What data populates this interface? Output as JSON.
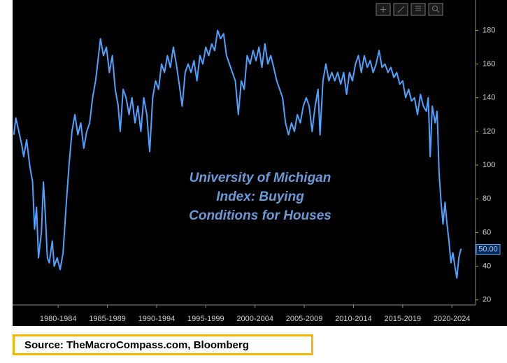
{
  "chart_data": {
    "type": "line",
    "annotation": [
      "University of Michigan",
      "Index: Buying",
      "Conditions for Houses"
    ],
    "source": "Source: TheMacroCompass.com, Bloomberg",
    "last_label": {
      "value": 50,
      "label": "50.00"
    },
    "xlim": [
      1977.87,
      2024.9
    ],
    "xticks": [
      {
        "value": 1982.5,
        "label": "1980-1984"
      },
      {
        "value": 1987.5,
        "label": "1985-1989"
      },
      {
        "value": 1992.5,
        "label": "1990-1994"
      },
      {
        "value": 1997.5,
        "label": "1995-1999"
      },
      {
        "value": 2002.5,
        "label": "2000-2004"
      },
      {
        "value": 2007.5,
        "label": "2005-2009"
      },
      {
        "value": 2012.5,
        "label": "2010-2014"
      },
      {
        "value": 2017.5,
        "label": "2015-2019"
      },
      {
        "value": 2022.5,
        "label": "2020-2024"
      }
    ],
    "ylim": [
      17,
      198
    ],
    "yticks": [
      20,
      40,
      60,
      80,
      100,
      120,
      140,
      160,
      180
    ],
    "grid": false,
    "series": [
      {
        "color": "#4da3ff",
        "x": [
          1978.0,
          1978.2,
          1978.5,
          1978.8,
          1979.0,
          1979.3,
          1979.6,
          1979.9,
          1980.1,
          1980.3,
          1980.5,
          1980.8,
          1981.0,
          1981.2,
          1981.4,
          1981.6,
          1981.9,
          1982.1,
          1982.4,
          1982.7,
          1983.0,
          1983.3,
          1983.6,
          1983.9,
          1984.2,
          1984.5,
          1984.8,
          1985.1,
          1985.4,
          1985.7,
          1986.0,
          1986.3,
          1986.6,
          1986.8,
          1987.1,
          1987.4,
          1987.7,
          1988.0,
          1988.3,
          1988.6,
          1988.8,
          1989.1,
          1989.4,
          1989.7,
          1990.0,
          1990.3,
          1990.6,
          1990.9,
          1991.2,
          1991.5,
          1991.8,
          1992.1,
          1992.4,
          1992.7,
          1993.0,
          1993.3,
          1993.6,
          1993.9,
          1994.2,
          1994.5,
          1994.8,
          1995.1,
          1995.4,
          1995.7,
          1996.0,
          1996.3,
          1996.6,
          1996.9,
          1997.2,
          1997.5,
          1997.8,
          1998.1,
          1998.4,
          1998.7,
          1999.0,
          1999.3,
          1999.6,
          1999.9,
          2000.2,
          2000.5,
          2000.8,
          2001.1,
          2001.4,
          2001.7,
          2002.0,
          2002.3,
          2002.6,
          2002.9,
          2003.2,
          2003.5,
          2003.8,
          2004.1,
          2004.4,
          2004.7,
          2005.0,
          2005.3,
          2005.6,
          2005.9,
          2006.2,
          2006.5,
          2006.8,
          2007.1,
          2007.4,
          2007.7,
          2008.0,
          2008.3,
          2008.6,
          2008.9,
          2009.1,
          2009.4,
          2009.7,
          2010.0,
          2010.3,
          2010.6,
          2010.9,
          2011.2,
          2011.5,
          2011.8,
          2012.1,
          2012.4,
          2012.7,
          2013.0,
          2013.3,
          2013.6,
          2013.9,
          2014.2,
          2014.5,
          2014.8,
          2015.1,
          2015.4,
          2015.7,
          2016.0,
          2016.3,
          2016.6,
          2016.9,
          2017.2,
          2017.5,
          2017.8,
          2018.1,
          2018.4,
          2018.7,
          2019.0,
          2019.3,
          2019.6,
          2019.9,
          2020.1,
          2020.3,
          2020.5,
          2020.8,
          2021.0,
          2021.2,
          2021.4,
          2021.6,
          2021.8,
          2022.0,
          2022.2,
          2022.4,
          2022.6,
          2022.8,
          2023.0,
          2023.2,
          2023.4,
          2023.5
        ],
        "values": [
          118,
          128,
          120,
          112,
          105,
          115,
          100,
          90,
          62,
          75,
          45,
          60,
          90,
          70,
          45,
          42,
          55,
          40,
          45,
          38,
          48,
          75,
          100,
          120,
          130,
          118,
          125,
          110,
          120,
          125,
          140,
          150,
          165,
          175,
          165,
          170,
          155,
          165,
          145,
          135,
          120,
          145,
          140,
          130,
          140,
          125,
          135,
          120,
          140,
          130,
          108,
          140,
          150,
          145,
          160,
          155,
          165,
          158,
          170,
          160,
          148,
          135,
          155,
          160,
          155,
          162,
          150,
          165,
          160,
          170,
          165,
          172,
          168,
          180,
          175,
          178,
          165,
          160,
          155,
          150,
          130,
          150,
          145,
          165,
          160,
          168,
          162,
          170,
          158,
          172,
          160,
          165,
          158,
          150,
          145,
          140,
          125,
          118,
          125,
          120,
          130,
          125,
          135,
          140,
          135,
          120,
          135,
          145,
          118,
          150,
          160,
          150,
          155,
          150,
          155,
          148,
          155,
          142,
          155,
          150,
          160,
          165,
          155,
          165,
          158,
          162,
          155,
          160,
          168,
          158,
          160,
          155,
          158,
          152,
          155,
          148,
          150,
          140,
          145,
          138,
          140,
          130,
          142,
          135,
          132,
          140,
          105,
          135,
          125,
          132,
          95,
          78,
          65,
          78,
          65,
          55,
          42,
          48,
          40,
          33,
          45,
          50,
          50
        ]
      }
    ]
  }
}
